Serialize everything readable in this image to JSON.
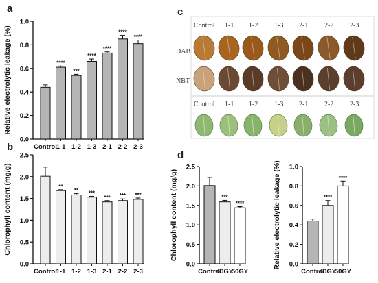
{
  "panels": {
    "a": "a",
    "b": "b",
    "c": "c",
    "d": "d"
  },
  "chart_data": [
    {
      "id": "a",
      "type": "bar",
      "categories": [
        "Control",
        "1-1",
        "1-2",
        "1-3",
        "2-1",
        "2-2",
        "2-3"
      ],
      "values": [
        0.44,
        0.61,
        0.54,
        0.66,
        0.73,
        0.85,
        0.81
      ],
      "errors": [
        0.02,
        0.01,
        0.01,
        0.02,
        0.01,
        0.03,
        0.03
      ],
      "significance": [
        "",
        "****",
        "***",
        "****",
        "****",
        "****",
        "****"
      ],
      "ylabel": "Relative electrolytic leakage (%)",
      "ylim": [
        0,
        1.0
      ],
      "yticks": [
        "0.0",
        "0.2",
        "0.4",
        "0.6",
        "0.8",
        "1.0"
      ],
      "bar_color": "#b5b5b5"
    },
    {
      "id": "b",
      "type": "bar",
      "categories": [
        "Control",
        "1-1",
        "1-2",
        "1-3",
        "2-1",
        "2-2",
        "2-3"
      ],
      "values": [
        2.01,
        1.68,
        1.58,
        1.53,
        1.42,
        1.45,
        1.48
      ],
      "errors": [
        0.21,
        0.02,
        0.03,
        0.02,
        0.03,
        0.04,
        0.03
      ],
      "significance": [
        "",
        "**",
        "**",
        "***",
        "***",
        "***",
        "***"
      ],
      "ylabel": "Chlorophyll content (mg/g)",
      "ylim": [
        0,
        2.5
      ],
      "yticks": [
        "0.0",
        "0.5",
        "1.0",
        "1.5",
        "2.0",
        "2.5"
      ],
      "bar_color": "#ededed"
    },
    {
      "id": "d1",
      "type": "bar",
      "categories": [
        "Control",
        "40GY",
        "50GY"
      ],
      "values": [
        2.01,
        1.59,
        1.44
      ],
      "errors": [
        0.21,
        0.04,
        0.03
      ],
      "significance": [
        "",
        "***",
        "****"
      ],
      "ylabel": "Chlorophyll content (mg/g)",
      "ylim": [
        0,
        2.5
      ],
      "yticks": [
        "0.0",
        "0.5",
        "1.0",
        "1.5",
        "2.0",
        "2.5"
      ],
      "bar_colors": [
        "#b5b5b5",
        "#ededed",
        "#ffffff"
      ]
    },
    {
      "id": "d2",
      "type": "bar",
      "categories": [
        "Control",
        "40GY",
        "50GY"
      ],
      "values": [
        0.44,
        0.6,
        0.8
      ],
      "errors": [
        0.02,
        0.05,
        0.05
      ],
      "significance": [
        "",
        "****",
        "****"
      ],
      "ylabel": "Relative electrolytic leakage (%)",
      "ylim": [
        0,
        1.0
      ],
      "yticks": [
        "0.0",
        "0.2",
        "0.4",
        "0.6",
        "0.8",
        "1.0"
      ],
      "bar_colors": [
        "#b5b5b5",
        "#ededed",
        "#ffffff"
      ]
    }
  ],
  "photos": {
    "columns": [
      "Control",
      "1-1",
      "1-2",
      "1-3",
      "2-1",
      "2-2",
      "2-3"
    ],
    "columns2": [
      "Control",
      "1-1",
      "1-2",
      "1-3",
      "2-1",
      "2-2",
      "2-3"
    ],
    "rows": [
      "DAB",
      "NBT"
    ],
    "dab_colors": [
      "#b97a35",
      "#a8651f",
      "#9a5a1c",
      "#8f5a22",
      "#7a4818",
      "#8a5a2a",
      "#5e3a1a"
    ],
    "nbt_colors": [
      "#c8a27a",
      "#6b4a35",
      "#5a3a28",
      "#6e4e38",
      "#4a3020",
      "#5a3e2e",
      "#5c3e30"
    ],
    "green_colors": [
      "#8fb872",
      "#9cc07c",
      "#86b46a",
      "#c8cf8a",
      "#88b06c",
      "#9cc084",
      "#7aa862"
    ]
  }
}
